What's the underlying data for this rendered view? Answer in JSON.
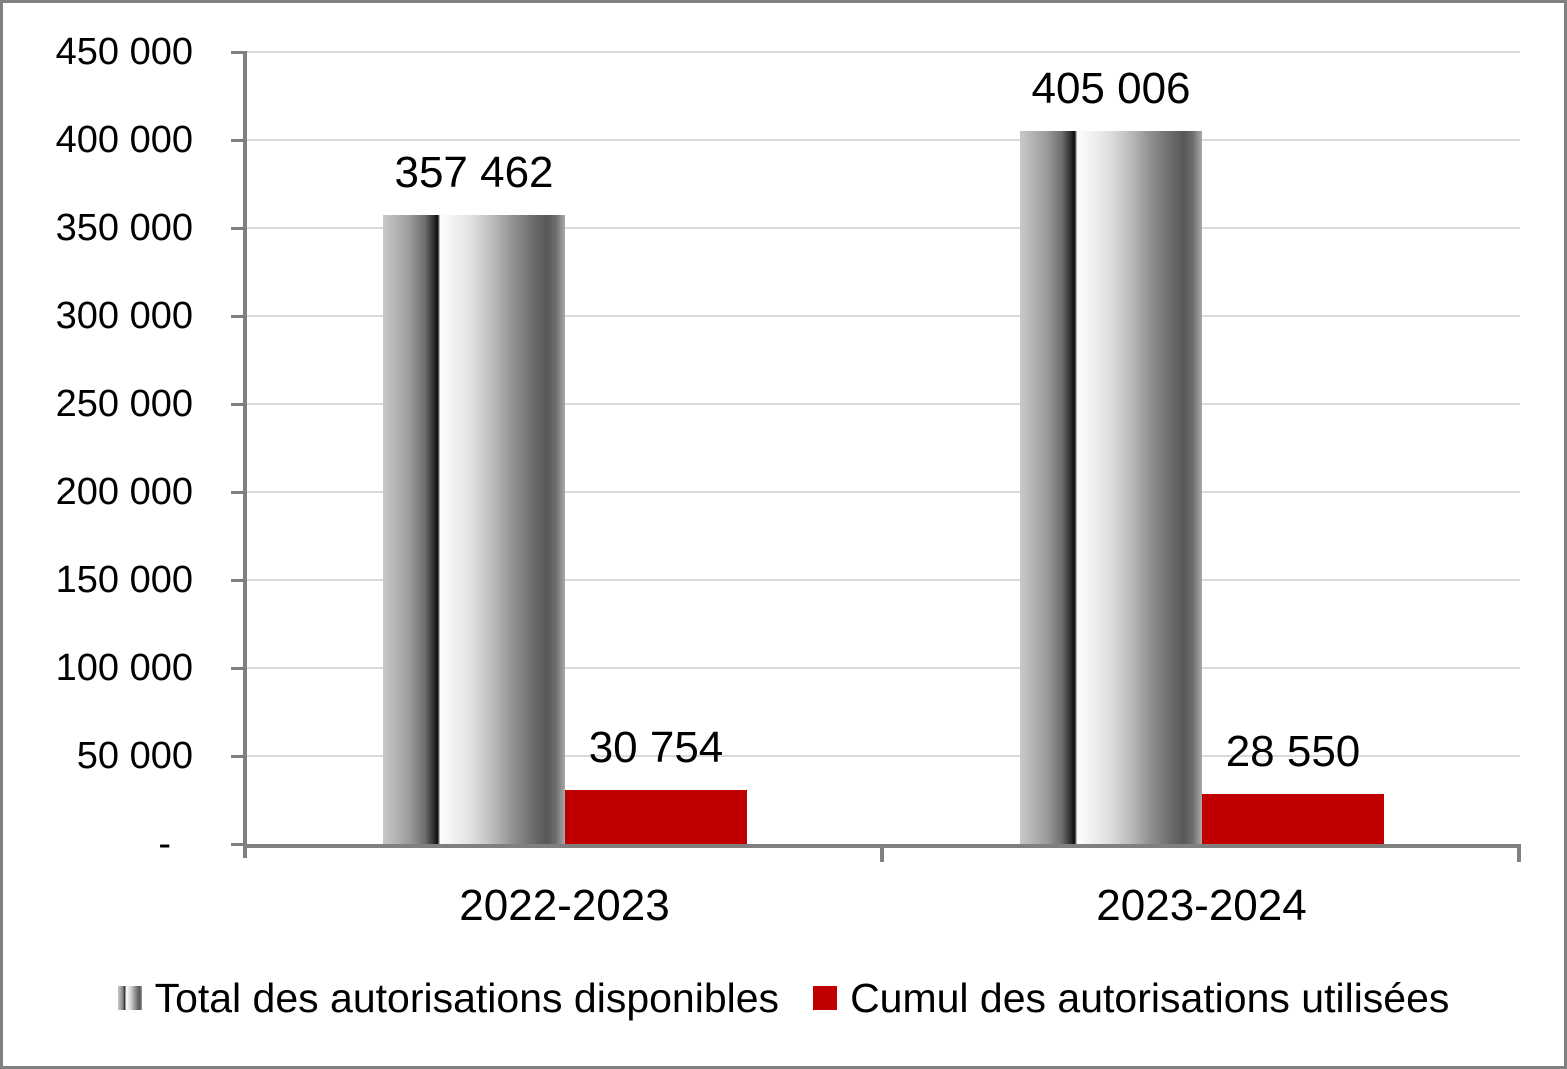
{
  "chart_data": {
    "type": "bar",
    "categories": [
      "2022-2023",
      "2023-2024"
    ],
    "series": [
      {
        "name": "Total des autorisations disponibles",
        "values": [
          357462,
          405006
        ],
        "labels": [
          "357 462",
          "405 006"
        ],
        "fill": "gray-gradient-cylinder"
      },
      {
        "name": "Cumul des autorisations utilisées",
        "values": [
          30754,
          28550
        ],
        "labels": [
          "30 754",
          "28 550"
        ],
        "fill": "#C00000"
      }
    ],
    "title": "",
    "xlabel": "",
    "ylabel": "",
    "ylim": [
      0,
      450000
    ],
    "ytick_interval": 50000,
    "ytick_labels": [
      "-",
      "50 000",
      "100 000",
      "150 000",
      "200 000",
      "250 000",
      "300 000",
      "350 000",
      "400 000",
      "450 000"
    ],
    "grid": true,
    "legend_position": "bottom",
    "colors": {
      "series_red": "#C00000",
      "axis_gray": "#808080",
      "gridline_gray": "#D9D9D9",
      "text": "#000000",
      "background": "#FFFFFF"
    }
  }
}
